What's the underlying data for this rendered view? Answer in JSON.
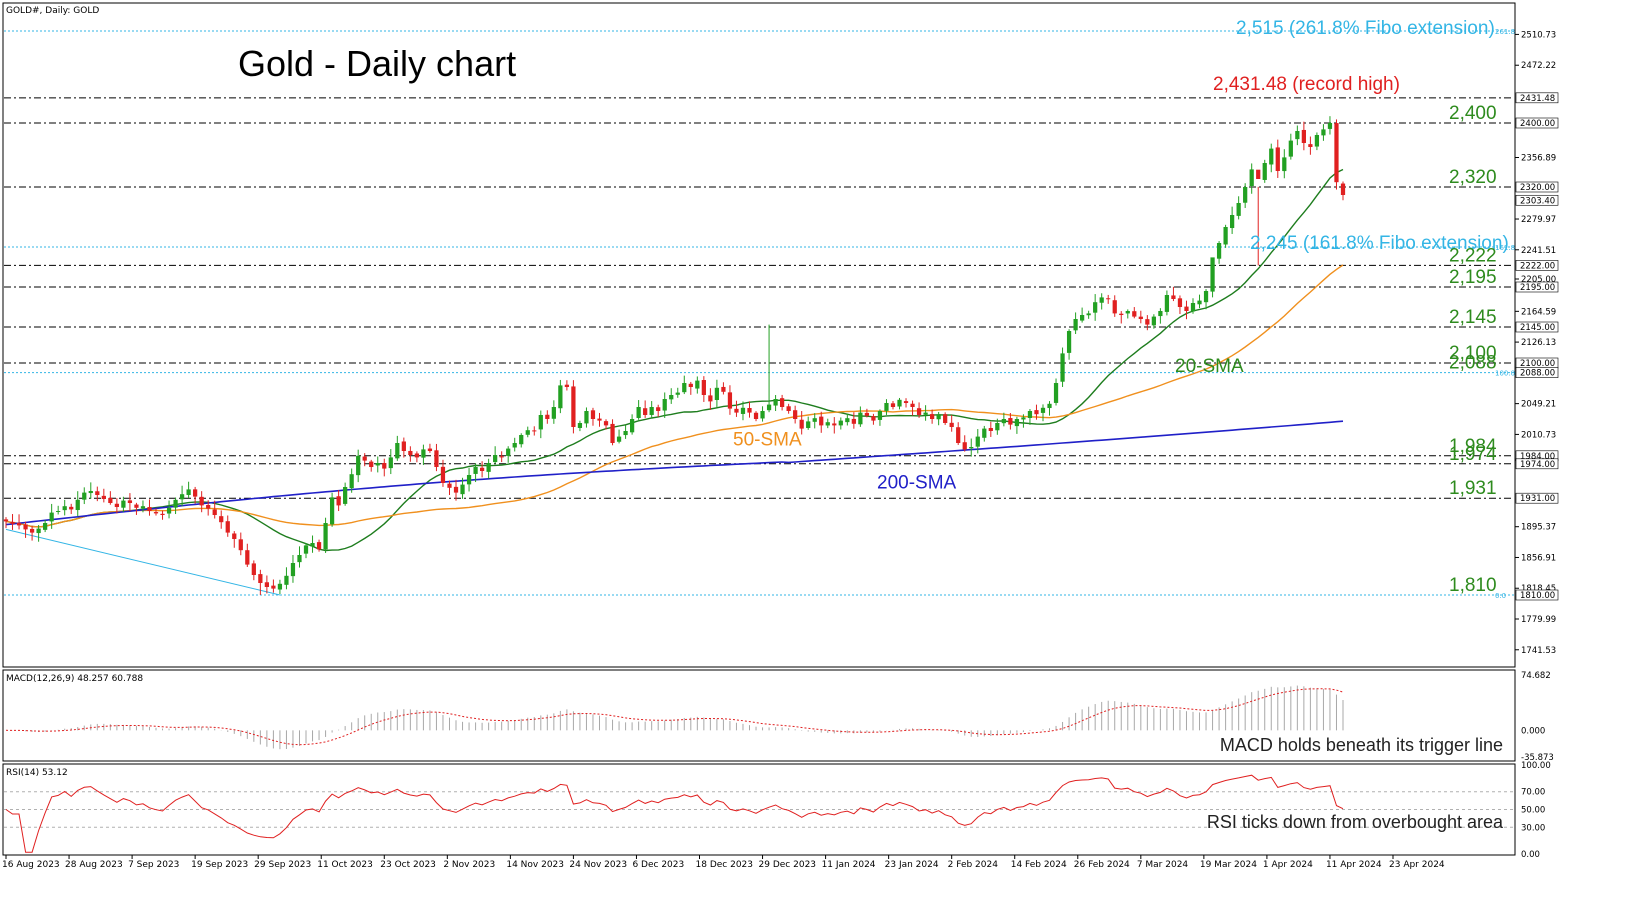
{
  "header": {
    "symbol": "GOLD#, Daily:  GOLD",
    "title": "Gold - Daily chart",
    "macd_label": "MACD(12,26,9) 48.257 60.788",
    "rsi_label": "RSI(14) 53.12",
    "macd_note": "MACD holds beneath its trigger line",
    "rsi_note": "RSI ticks down from overbought area"
  },
  "colors": {
    "bull": "#22a022",
    "bear": "#e02020",
    "sma20": "#1e7d1e",
    "sma50": "#f0901e",
    "sma200": "#2020c8",
    "fibo": "#33b5e5",
    "level_text": "#2e8b1e",
    "grid": "#000000"
  },
  "chart_data": [
    {
      "type": "candlestick",
      "panel": "price",
      "title": "Gold - Daily chart",
      "ylim": [
        1720,
        2550
      ],
      "y_ticks": [
        "2510.73",
        "2472.22",
        "2356.89",
        "2279.97",
        "2241.51",
        "2205.00",
        "2164.59",
        "2126.13",
        "2049.21",
        "2010.73",
        "1895.37",
        "1856.91",
        "1818.45",
        "1779.99",
        "1741.53"
      ],
      "y_tick_values": [
        2510.73,
        2472.22,
        2356.89,
        2279.97,
        2241.51,
        2205.0,
        2164.59,
        2126.13,
        2049.21,
        2010.73,
        1895.37,
        1856.91,
        1818.45,
        1779.99,
        1741.53
      ],
      "price_boxes": [
        {
          "value": 2431.48,
          "label": "2431.48"
        },
        {
          "value": 2400.0,
          "label": "2400.00"
        },
        {
          "value": 2320.0,
          "label": "2320.00"
        },
        {
          "value": 2303.4,
          "label": "2303.40"
        },
        {
          "value": 2222.0,
          "label": "2222.00"
        },
        {
          "value": 2195.0,
          "label": "2195.00"
        },
        {
          "value": 2145.0,
          "label": "2145.00"
        },
        {
          "value": 2100.0,
          "label": "2100.00"
        },
        {
          "value": 2088.0,
          "label": "2088.00"
        },
        {
          "value": 1984.0,
          "label": "1984.00"
        },
        {
          "value": 1974.0,
          "label": "1974.00"
        },
        {
          "value": 1931.0,
          "label": "1931.00"
        },
        {
          "value": 1810.0,
          "label": "1810.00"
        }
      ],
      "x_labels": [
        "16 Aug 2023",
        "28 Aug 2023",
        "7 Sep 2023",
        "19 Sep 2023",
        "29 Sep 2023",
        "11 Oct 2023",
        "23 Oct 2023",
        "2 Nov 2023",
        "14 Nov 2023",
        "24 Nov 2023",
        "6 Dec 2023",
        "18 Dec 2023",
        "29 Dec 2023",
        "11 Jan 2024",
        "23 Jan 2024",
        "2 Feb 2024",
        "14 Feb 2024",
        "26 Feb 2024",
        "7 Mar 2024",
        "19 Mar 2024",
        "1 Apr 2024",
        "11 Apr 2024",
        "23 Apr 2024"
      ],
      "close": [
        1902,
        1899,
        1897,
        1892,
        1888,
        1893,
        1900,
        1913,
        1915,
        1921,
        1917,
        1929,
        1938,
        1940,
        1935,
        1930,
        1925,
        1920,
        1928,
        1925,
        1919,
        1921,
        1915,
        1912,
        1910,
        1919,
        1929,
        1936,
        1942,
        1933,
        1922,
        1918,
        1910,
        1901,
        1888,
        1880,
        1866,
        1848,
        1835,
        1825,
        1820,
        1818,
        1824,
        1834,
        1850,
        1860,
        1872,
        1875,
        1867,
        1900,
        1932,
        1922,
        1945,
        1961,
        1984,
        1978,
        1970,
        1975,
        1968,
        1982,
        2000,
        1990,
        1985,
        1982,
        1992,
        1990,
        1970,
        1950,
        1944,
        1938,
        1948,
        1960,
        1970,
        1965,
        1975,
        1985,
        1982,
        1993,
        2000,
        2010,
        2016,
        2015,
        2035,
        2030,
        2045,
        2072,
        2070,
        2020,
        2025,
        2040,
        2030,
        2028,
        2022,
        2000,
        2008,
        2015,
        2030,
        2045,
        2035,
        2045,
        2040,
        2055,
        2060,
        2063,
        2075,
        2070,
        2078,
        2060,
        2052,
        2069,
        2064,
        2043,
        2038,
        2044,
        2038,
        2030,
        2040,
        2048,
        2055,
        2045,
        2040,
        2030,
        2018,
        2027,
        2031,
        2022,
        2026,
        2022,
        2028,
        2031,
        2024,
        2038,
        2034,
        2028,
        2040,
        2050,
        2045,
        2054,
        2050,
        2045,
        2035,
        2038,
        2030,
        2035,
        2025,
        2020,
        2000,
        1992,
        1995,
        2008,
        2018,
        2015,
        2025,
        2030,
        2023,
        2030,
        2032,
        2040,
        2036,
        2044,
        2049,
        2075,
        2112,
        2140,
        2155,
        2160,
        2162,
        2176,
        2182,
        2180,
        2162,
        2160,
        2165,
        2158,
        2155,
        2148,
        2158,
        2165,
        2185,
        2180,
        2170,
        2165,
        2175,
        2178,
        2190,
        2232,
        2250,
        2270,
        2285,
        2300,
        2320,
        2342,
        2330,
        2350,
        2368,
        2340,
        2357,
        2378,
        2390,
        2375,
        2370,
        2385,
        2392,
        2400,
        2326,
        2310
      ],
      "series": [
        {
          "name": "20-SMA",
          "color": "#1e7d1e"
        },
        {
          "name": "50-SMA",
          "color": "#f0901e"
        },
        {
          "name": "200-SMA",
          "color": "#2020c8"
        }
      ],
      "annotations": [
        {
          "text": "2,515 (261.8% Fibo extension)",
          "value": 2515,
          "kind": "fibo",
          "tag": "261.8"
        },
        {
          "text": "2,431.48 (record high)",
          "value": 2431.48,
          "kind": "record"
        },
        {
          "text": "2,400",
          "value": 2400,
          "kind": "level"
        },
        {
          "text": "2,320",
          "value": 2320,
          "kind": "level"
        },
        {
          "text": "2,245 (161.8% Fibo extension)",
          "value": 2245,
          "kind": "fibo",
          "tag": "161.8"
        },
        {
          "text": "2,222",
          "value": 2222,
          "kind": "level"
        },
        {
          "text": "2,195",
          "value": 2195,
          "kind": "level"
        },
        {
          "text": "2,145",
          "value": 2145,
          "kind": "level"
        },
        {
          "text": "2,100",
          "value": 2100,
          "kind": "level"
        },
        {
          "text": "2,088",
          "value": 2088,
          "kind": "fibo-level",
          "tag": "100.0"
        },
        {
          "text": "1,984",
          "value": 1984,
          "kind": "level"
        },
        {
          "text": "1,974",
          "value": 1974,
          "kind": "level"
        },
        {
          "text": "1,931",
          "value": 1931,
          "kind": "level"
        },
        {
          "text": "1,810",
          "value": 1810,
          "kind": "fibo-level",
          "tag": "0.0"
        }
      ],
      "sma_labels": [
        {
          "text": "20-SMA",
          "color": "#1e7d1e"
        },
        {
          "text": "50-SMA",
          "color": "#f0901e"
        },
        {
          "text": "200-SMA",
          "color": "#2020c8"
        }
      ]
    },
    {
      "type": "histogram+line",
      "panel": "macd",
      "title": "MACD(12,26,9) 48.257 60.788",
      "ylim": [
        -40,
        80
      ],
      "y_ticks": [
        "74.682",
        "0.000",
        "-35.873"
      ],
      "y_tick_values": [
        74.682,
        0,
        -35.873
      ]
    },
    {
      "type": "line",
      "panel": "rsi",
      "title": "RSI(14) 53.12",
      "ylim": [
        0,
        100
      ],
      "y_ticks": [
        "100.00",
        "70.00",
        "50.00",
        "30.00",
        "0.00"
      ],
      "y_tick_values": [
        100,
        70,
        50,
        30,
        0
      ],
      "levels": [
        70,
        50,
        30
      ]
    }
  ]
}
